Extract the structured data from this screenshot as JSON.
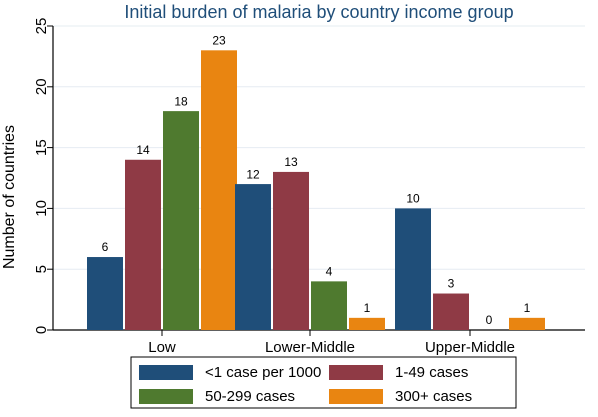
{
  "chart_data": {
    "type": "bar",
    "title": "Initial burden of malaria by country income group",
    "xlabel": "",
    "ylabel": "Number of countries",
    "ylim": [
      0,
      25
    ],
    "yticks": [
      0,
      5,
      10,
      15,
      20,
      25
    ],
    "categories": [
      "Low",
      "Lower-Middle",
      "Upper-Middle"
    ],
    "series": [
      {
        "name": "<1 case per 1000",
        "values": [
          6,
          12,
          10
        ],
        "color": "#1f4e79"
      },
      {
        "name": "1-49 cases",
        "values": [
          14,
          13,
          3
        ],
        "color": "#8f3a45"
      },
      {
        "name": "50-299 cases",
        "values": [
          18,
          4,
          0
        ],
        "color": "#4f7a2f"
      },
      {
        "name": "300+ cases",
        "values": [
          23,
          1,
          1
        ],
        "color": "#e98511"
      }
    ],
    "data_labels": true,
    "grid": true,
    "legend_position": "bottom"
  }
}
